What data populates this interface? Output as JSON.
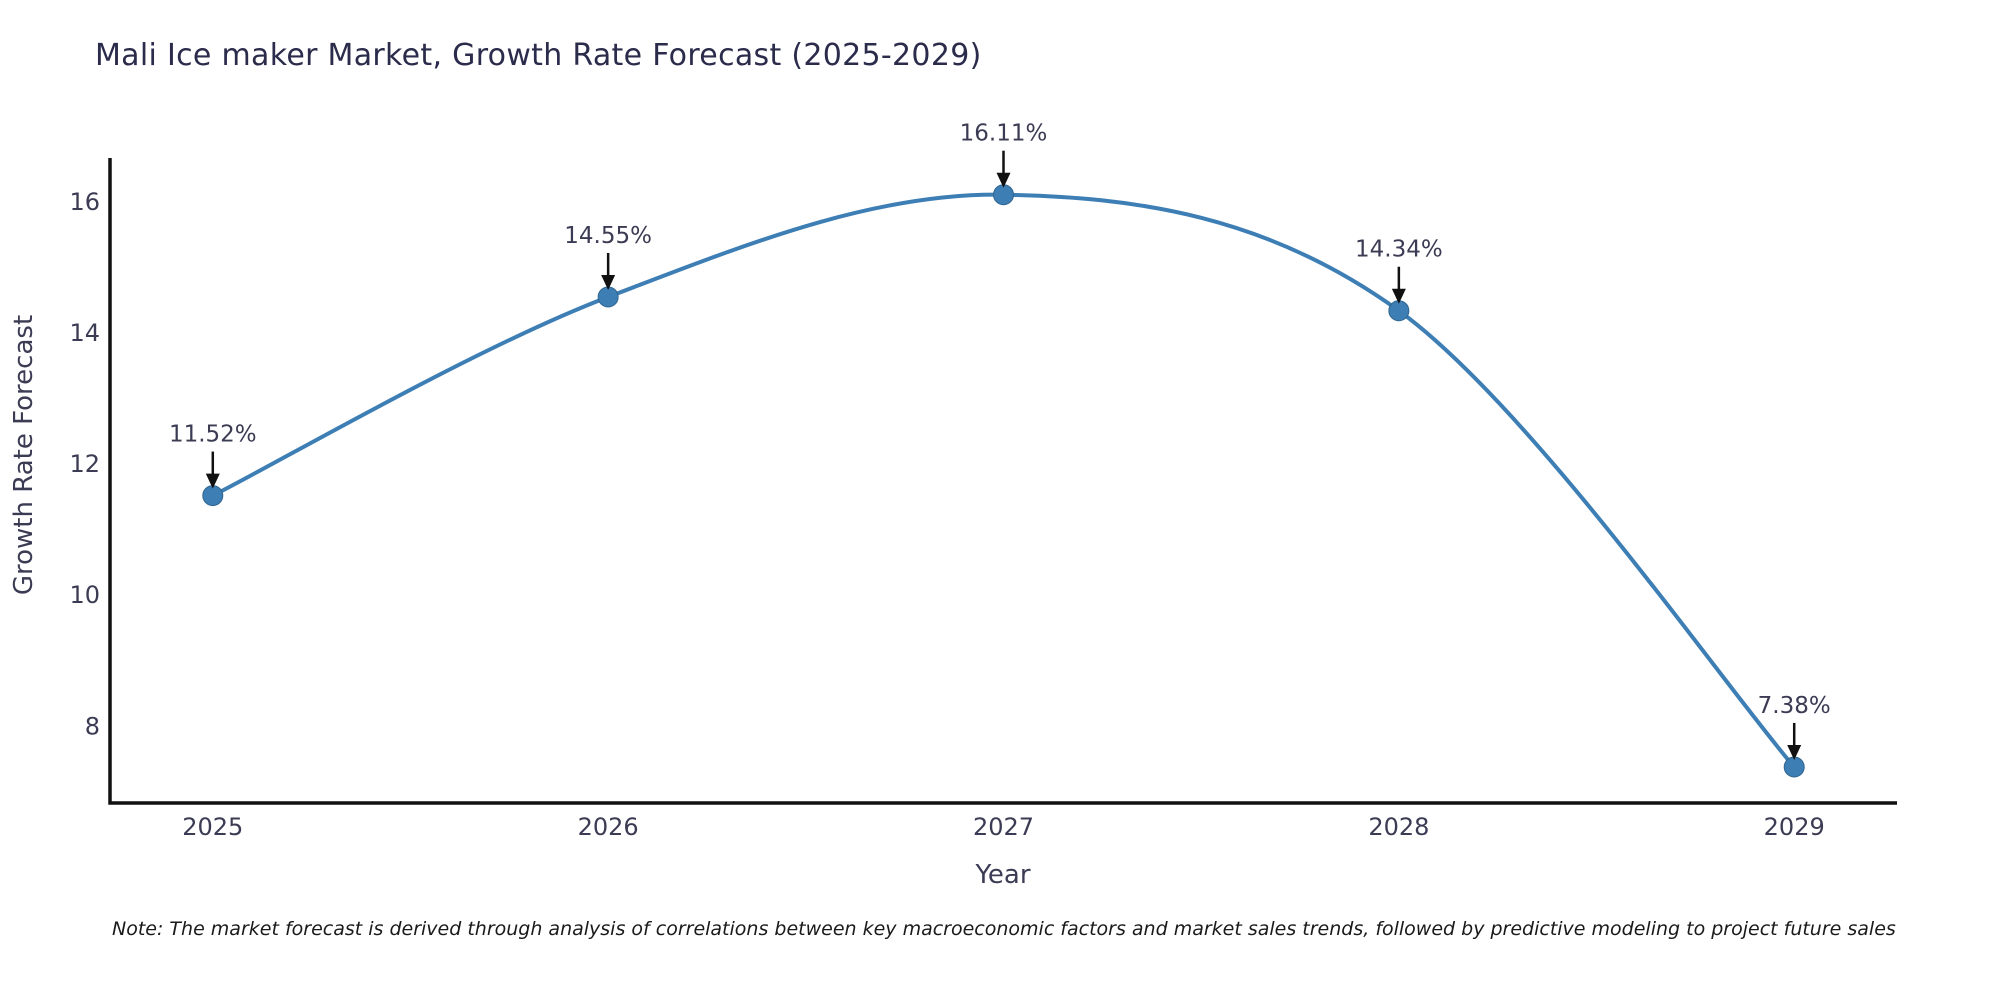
{
  "chart_data": {
    "type": "line",
    "title": "Mali Ice maker Market, Growth Rate Forecast (2025-2029)",
    "xlabel": "Year",
    "ylabel": "Growth Rate Forecast",
    "x": [
      2025,
      2026,
      2027,
      2028,
      2029
    ],
    "series": [
      {
        "name": "Growth Rate Forecast",
        "values": [
          11.52,
          14.55,
          16.11,
          14.34,
          7.38
        ]
      }
    ],
    "point_labels": [
      "11.52%",
      "14.55%",
      "16.11%",
      "14.34%",
      "7.38%"
    ],
    "x_tick_labels": [
      "2025",
      "2026",
      "2027",
      "2028",
      "2029"
    ],
    "y_tick_values": [
      8,
      10,
      12,
      14,
      16
    ],
    "xlim": [
      2024.74,
      2029.26
    ],
    "ylim": [
      6.83,
      16.67
    ],
    "grid": false,
    "legend_position": "none",
    "line_smoothing": "spline"
  },
  "note": {
    "text": "Note: The market forecast is derived through analysis of correlations between key macroeconomic factors and market sales trends, followed by predictive modeling to project future sales"
  },
  "colors": {
    "line": "#3d7eb5",
    "marker": "#3d7eb5",
    "marker_edge": "#30668f",
    "title_text": "#2b2b4b",
    "axis_text": "#3b3b54",
    "annotation_arrow": "#111111",
    "spine": "#111111",
    "background": "#ffffff"
  }
}
